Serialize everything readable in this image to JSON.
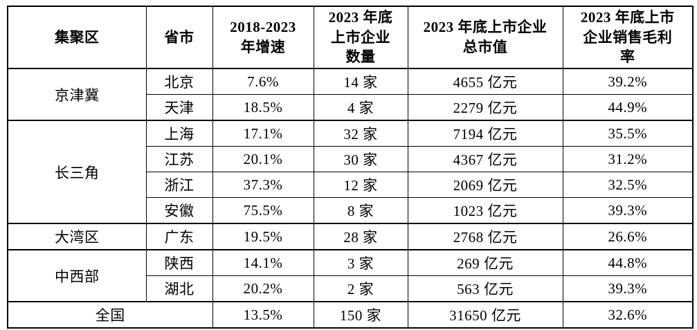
{
  "colors": {
    "background": "#ffffff",
    "border": "#000000",
    "text": "#000000"
  },
  "table": {
    "headers": [
      "集聚区",
      "省市",
      "2018-2023\n年增速",
      "2023 年底\n上市企业\n数量",
      "2023 年底上市企业\n总市值",
      "2023 年底上市\n企业销售毛利\n率"
    ],
    "groups": [
      {
        "region": "京津冀",
        "rows": [
          {
            "province": "北京",
            "growth": "7.6%",
            "count": "14 家",
            "market_cap": "4655 亿元",
            "margin": "39.2%"
          },
          {
            "province": "天津",
            "growth": "18.5%",
            "count": "4 家",
            "market_cap": "2279 亿元",
            "margin": "44.9%"
          }
        ]
      },
      {
        "region": "长三角",
        "rows": [
          {
            "province": "上海",
            "growth": "17.1%",
            "count": "32 家",
            "market_cap": "7194 亿元",
            "margin": "35.5%"
          },
          {
            "province": "江苏",
            "growth": "20.1%",
            "count": "30 家",
            "market_cap": "4367 亿元",
            "margin": "31.2%"
          },
          {
            "province": "浙江",
            "growth": "37.3%",
            "count": "12 家",
            "market_cap": "2069 亿元",
            "margin": "32.5%"
          },
          {
            "province": "安徽",
            "growth": "75.5%",
            "count": "8 家",
            "market_cap": "1023 亿元",
            "margin": "39.3%"
          }
        ]
      },
      {
        "region": "大湾区",
        "rows": [
          {
            "province": "广东",
            "growth": "19.5%",
            "count": "28 家",
            "market_cap": "2768 亿元",
            "margin": "26.6%"
          }
        ]
      },
      {
        "region": "中西部",
        "rows": [
          {
            "province": "陕西",
            "growth": "14.1%",
            "count": "3 家",
            "market_cap": "269 亿元",
            "margin": "44.8%"
          },
          {
            "province": "湖北",
            "growth": "20.2%",
            "count": "2 家",
            "market_cap": "563 亿元",
            "margin": "39.3%"
          }
        ]
      }
    ],
    "total": {
      "label": "全国",
      "growth": "13.5%",
      "count": "150 家",
      "market_cap": "31650 亿元",
      "margin": "32.6%"
    }
  }
}
